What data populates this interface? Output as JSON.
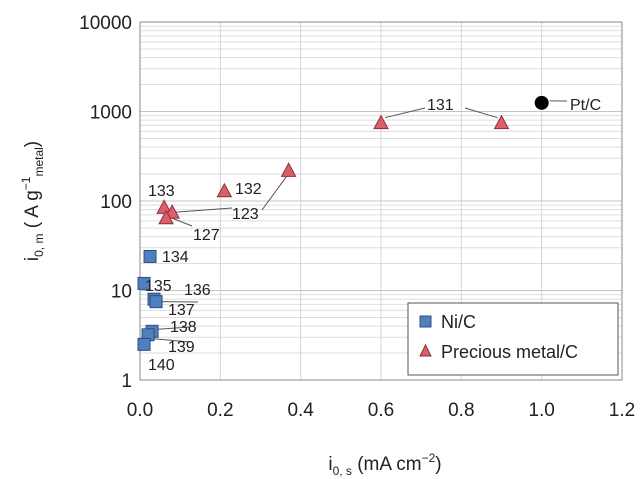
{
  "chart_data": {
    "type": "scatter",
    "xlim": [
      0.0,
      1.2
    ],
    "ylim": [
      1,
      10000
    ],
    "y_scale": "log",
    "grid": true,
    "x_ticks": [
      "0.0",
      "0.2",
      "0.4",
      "0.6",
      "0.8",
      "1.0",
      "1.2"
    ],
    "y_ticks": [
      "1",
      "10",
      "100",
      "1000",
      "10000"
    ],
    "xlabel": {
      "main": "i",
      "sub": "0, s",
      "rest": " (mA cm",
      "sup": "−2",
      "end": ")"
    },
    "ylabel": {
      "main": "i",
      "sub": "0, m",
      "rest": " ( A g",
      "sup": "−1",
      "sub2": "metal",
      "end": ")"
    },
    "legend_position": "bottom-right",
    "series": [
      {
        "name": "Ni/C",
        "marker": "square",
        "color": "#4f7fbd",
        "points": [
          {
            "x": 0.025,
            "y": 24
          },
          {
            "x": 0.01,
            "y": 12
          },
          {
            "x": 0.035,
            "y": 8
          },
          {
            "x": 0.04,
            "y": 7.5
          },
          {
            "x": 0.03,
            "y": 3.5
          },
          {
            "x": 0.02,
            "y": 3.2
          },
          {
            "x": 0.01,
            "y": 2.5
          }
        ]
      },
      {
        "name": "Precious metal/C",
        "marker": "triangle",
        "color": "#d9606a",
        "points": [
          {
            "x": 0.06,
            "y": 85
          },
          {
            "x": 0.08,
            "y": 75
          },
          {
            "x": 0.065,
            "y": 65
          },
          {
            "x": 0.21,
            "y": 130
          },
          {
            "x": 0.37,
            "y": 220
          },
          {
            "x": 0.6,
            "y": 750
          },
          {
            "x": 0.9,
            "y": 750
          }
        ]
      },
      {
        "name": "Pt/C",
        "marker": "circle",
        "color": "#000000",
        "points": [
          {
            "x": 1.0,
            "y": 1250
          }
        ]
      }
    ],
    "annotations": [
      "131",
      "Pt/C",
      "132",
      "133",
      "123",
      "127",
      "134",
      "135",
      "136",
      "137",
      "138",
      "139",
      "140"
    ]
  }
}
